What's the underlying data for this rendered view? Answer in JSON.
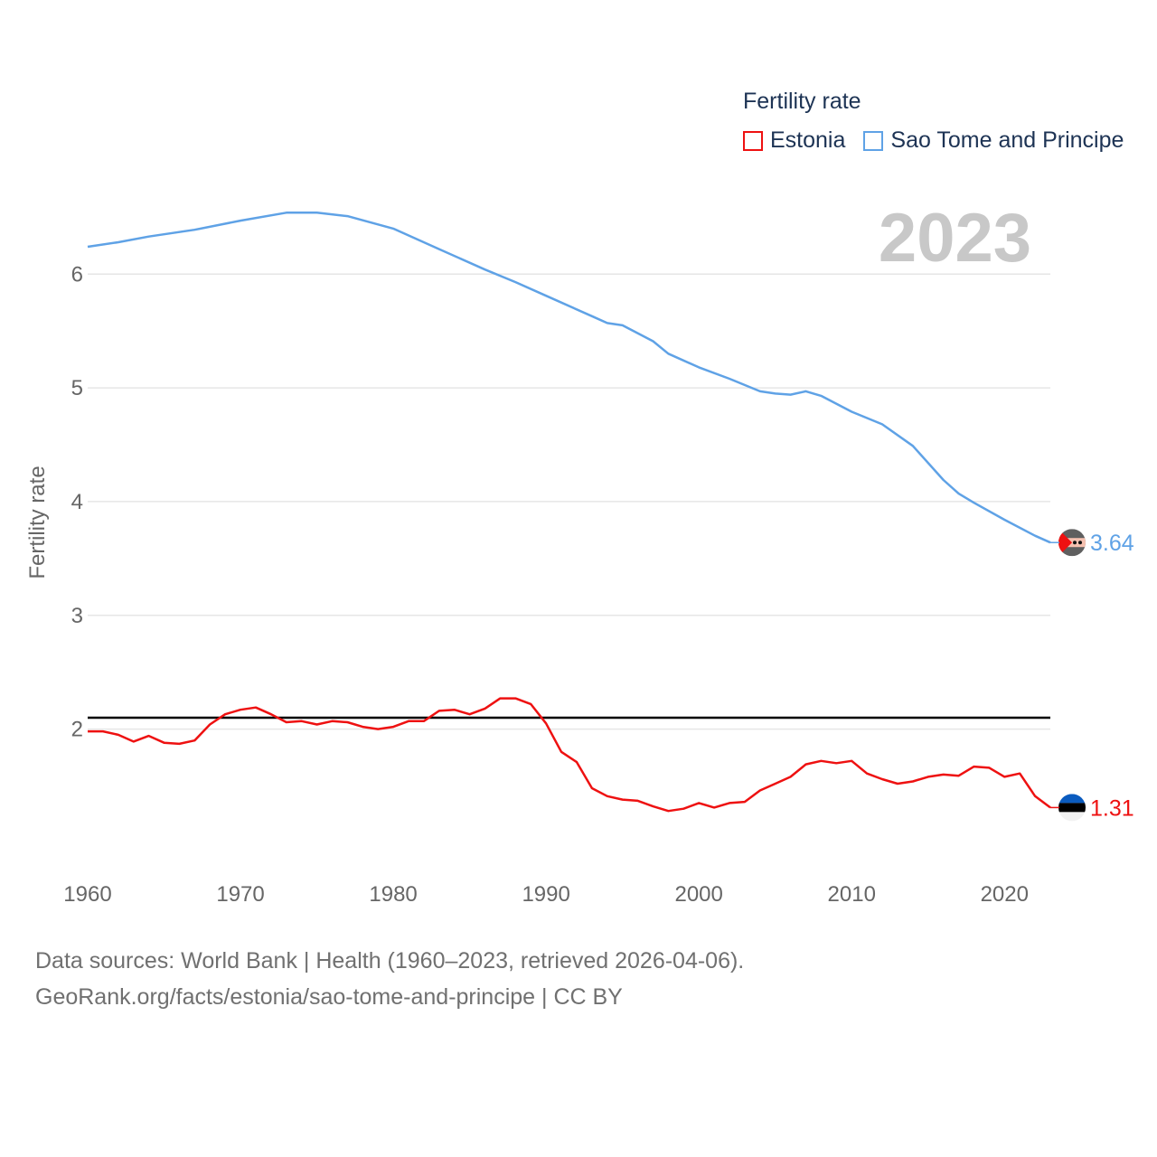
{
  "legend": {
    "title": "Fertility rate",
    "items": [
      {
        "label": "Estonia",
        "color": "#ee1111"
      },
      {
        "label": "Sao Tome and Principe",
        "color": "#5fa2e6"
      }
    ]
  },
  "year_label": "2023",
  "footer": {
    "line1": "Data sources: World Bank | Health (1960–2023, retrieved 2026-04-06).",
    "line2": "GeoRank.org/facts/estonia/sao-tome-and-principe | CC BY"
  },
  "chart_data": {
    "type": "line",
    "title": "Fertility rate",
    "xlabel": "",
    "ylabel": "Fertility rate",
    "xlim": [
      1960,
      2023
    ],
    "ylim": [
      0.9,
      6.9
    ],
    "yticks": [
      2,
      3,
      4,
      5,
      6
    ],
    "xticks": [
      1960,
      1970,
      1980,
      1990,
      2000,
      2010,
      2020
    ],
    "reference_line": 2.1,
    "series": [
      {
        "name": "Sao Tome and Principe",
        "color": "#5fa2e6",
        "end_label": "3.64",
        "x": [
          1960,
          1962,
          1964,
          1967,
          1970,
          1973,
          1975,
          1977,
          1980,
          1983,
          1986,
          1988,
          1990,
          1993,
          1994,
          1995,
          1997,
          1998,
          2000,
          2002,
          2004,
          2005,
          2006,
          2007,
          2008,
          2010,
          2012,
          2014,
          2016,
          2017,
          2018,
          2020,
          2022,
          2023
        ],
        "y": [
          6.24,
          6.28,
          6.33,
          6.39,
          6.47,
          6.54,
          6.54,
          6.51,
          6.4,
          6.22,
          6.04,
          5.93,
          5.81,
          5.63,
          5.57,
          5.55,
          5.41,
          5.3,
          5.18,
          5.08,
          4.97,
          4.95,
          4.94,
          4.97,
          4.93,
          4.79,
          4.68,
          4.49,
          4.19,
          4.07,
          3.99,
          3.84,
          3.7,
          3.64
        ]
      },
      {
        "name": "Estonia",
        "color": "#ee1111",
        "end_label": "1.31",
        "x": [
          1960,
          1961,
          1962,
          1963,
          1964,
          1965,
          1966,
          1967,
          1968,
          1969,
          1970,
          1971,
          1972,
          1973,
          1974,
          1975,
          1976,
          1977,
          1978,
          1979,
          1980,
          1981,
          1982,
          1983,
          1984,
          1985,
          1986,
          1987,
          1988,
          1989,
          1990,
          1991,
          1992,
          1993,
          1994,
          1995,
          1996,
          1997,
          1998,
          1999,
          2000,
          2001,
          2002,
          2003,
          2004,
          2005,
          2006,
          2007,
          2008,
          2009,
          2010,
          2011,
          2012,
          2013,
          2014,
          2015,
          2016,
          2017,
          2018,
          2019,
          2020,
          2021,
          2022,
          2023
        ],
        "y": [
          1.98,
          1.98,
          1.95,
          1.89,
          1.94,
          1.88,
          1.87,
          1.9,
          2.04,
          2.13,
          2.17,
          2.19,
          2.13,
          2.06,
          2.07,
          2.04,
          2.07,
          2.06,
          2.02,
          2.0,
          2.02,
          2.07,
          2.07,
          2.16,
          2.17,
          2.13,
          2.18,
          2.27,
          2.27,
          2.22,
          2.05,
          1.8,
          1.71,
          1.48,
          1.41,
          1.38,
          1.37,
          1.32,
          1.28,
          1.3,
          1.35,
          1.31,
          1.35,
          1.36,
          1.46,
          1.52,
          1.58,
          1.69,
          1.72,
          1.7,
          1.72,
          1.61,
          1.56,
          1.52,
          1.54,
          1.58,
          1.6,
          1.59,
          1.67,
          1.66,
          1.58,
          1.61,
          1.41,
          1.31
        ]
      }
    ]
  }
}
